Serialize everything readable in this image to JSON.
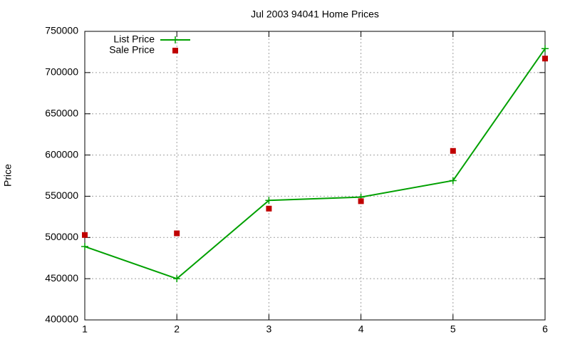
{
  "chart_data": {
    "type": "line",
    "title": "Jul 2003 94041 Home Prices",
    "y_label": "Price",
    "x": [
      1,
      2,
      3,
      4,
      5,
      6
    ],
    "series": [
      {
        "name": "List Price",
        "color": "#00a000",
        "mode": "lines+markers",
        "values": [
          489000,
          450000,
          545000,
          549000,
          569000,
          729000
        ]
      },
      {
        "name": "Sale Price",
        "color": "#c00000",
        "mode": "markers",
        "values": [
          503000,
          505000,
          535000,
          544000,
          605000,
          717000
        ]
      }
    ],
    "xlim": [
      1,
      6
    ],
    "xticks": [
      1,
      2,
      3,
      4,
      5,
      6
    ],
    "ylim": [
      400000,
      750000
    ],
    "yticks": [
      400000,
      450000,
      500000,
      550000,
      600000,
      650000,
      700000,
      750000
    ],
    "grid": true,
    "legend": "top-left"
  }
}
